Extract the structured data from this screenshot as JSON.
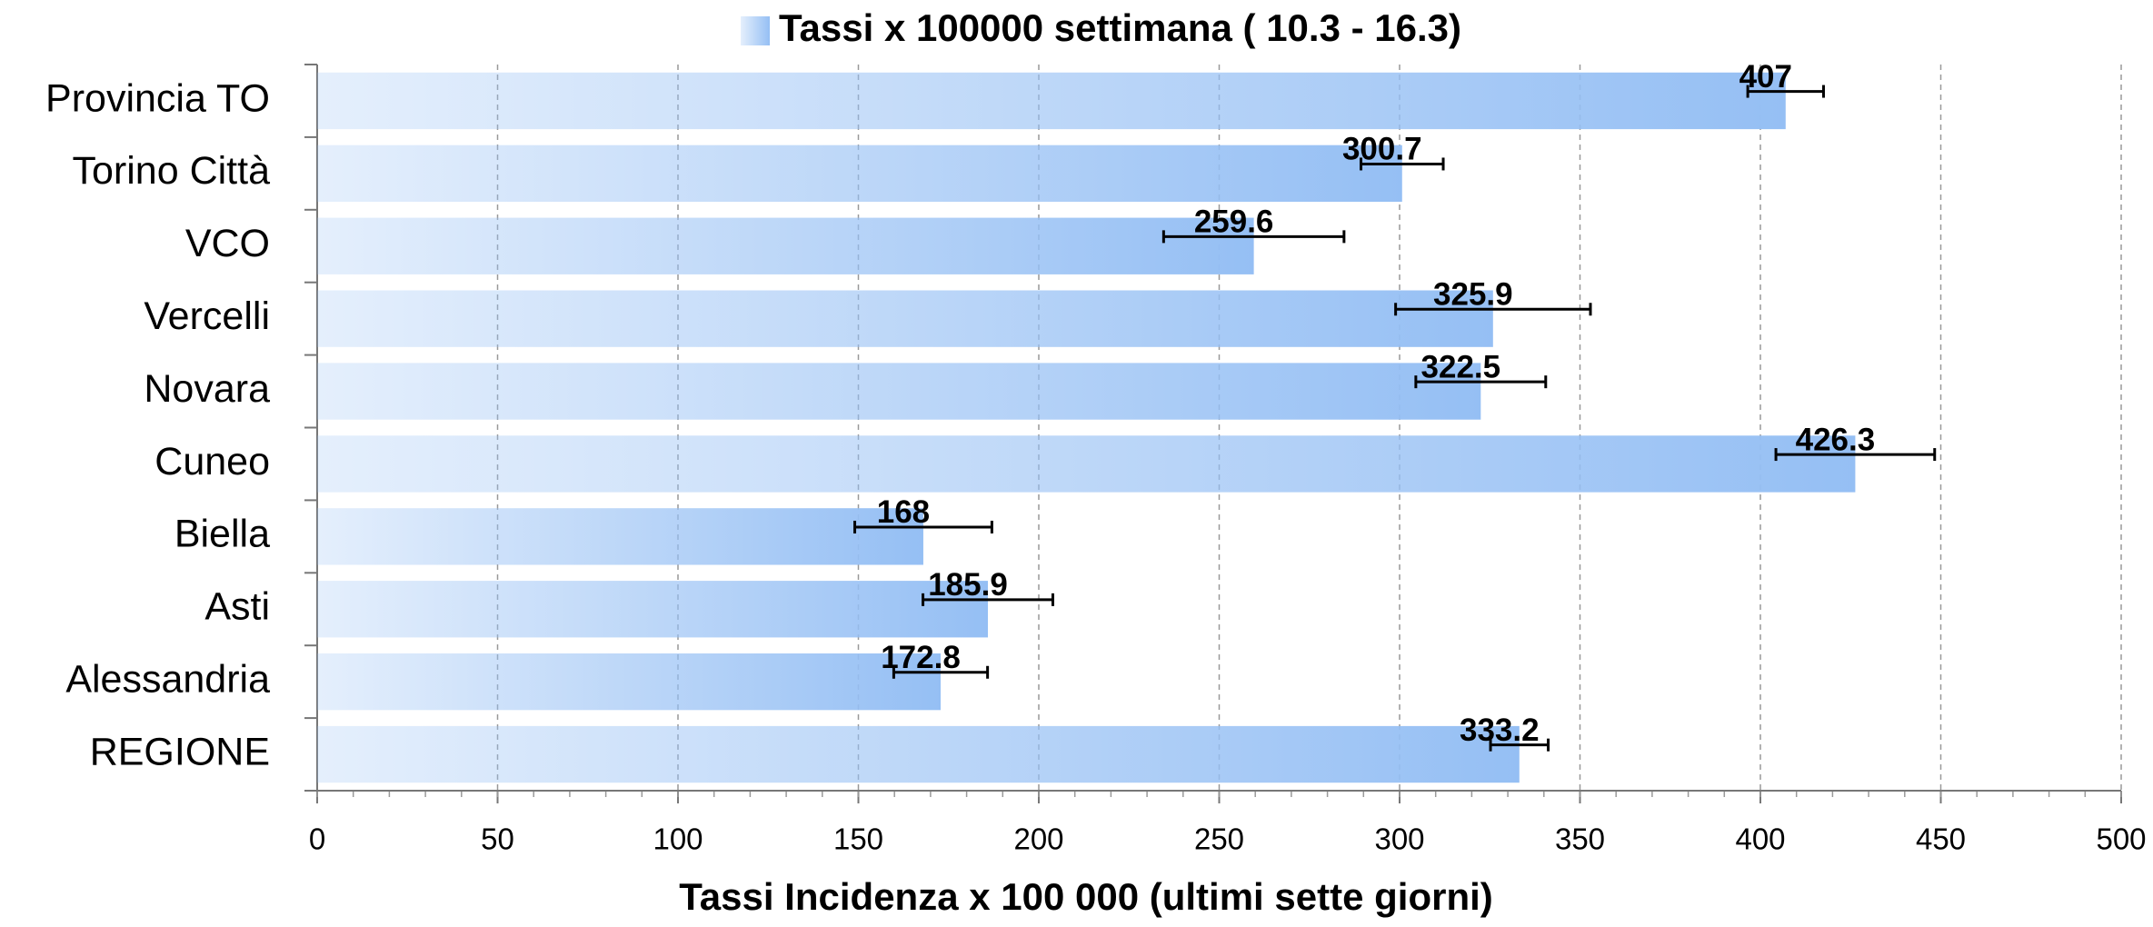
{
  "chart_data": {
    "type": "hbar",
    "x_label": "Tassi Incidenza x 100 000  (ultimi sette giorni)",
    "categories": [
      "Provincia TO",
      "Torino Città",
      "VCO",
      "Vercelli",
      "Novara",
      "Cuneo",
      "Biella",
      "Asti",
      "Alessandria",
      "REGIONE"
    ],
    "series": [
      {
        "name": "Tassi x 100000 settimana ( 10.3 - 16.3)",
        "color": "#95bff4",
        "values": [
          407,
          300.7,
          259.6,
          325.9,
          322.5,
          426.3,
          168,
          185.9,
          172.8,
          333.2
        ],
        "errors": [
          10.5,
          11.4,
          25,
          27,
          18,
          22,
          19,
          18,
          13,
          8
        ]
      }
    ],
    "xlim": [
      0,
      500
    ],
    "xticks": [
      0,
      50,
      100,
      150,
      200,
      250,
      300,
      350,
      400,
      450,
      500
    ],
    "grid": true,
    "legend": "top"
  }
}
